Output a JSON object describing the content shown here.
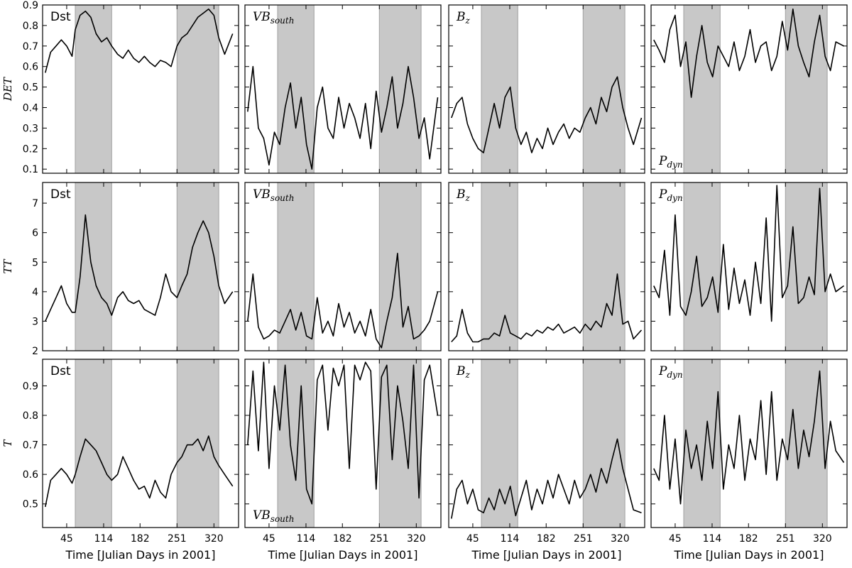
{
  "figure": {
    "xlabel": "Time [Julian Days in 2001]",
    "row_ylabels": [
      "DET",
      "TT",
      "T"
    ],
    "shade_color": "#c8c8c8",
    "line_color": "#000000"
  },
  "chart_data": [
    {
      "type": "line",
      "row": 0,
      "col": 0,
      "label": "Dst",
      "label_math": false,
      "label_pos": "top-left",
      "ylabel": "DET",
      "xlim": [
        0,
        366
      ],
      "ylim": [
        0.08,
        0.9
      ],
      "xticks": [
        45,
        114,
        182,
        251,
        320
      ],
      "yticks": [
        0.1,
        0.2,
        0.3,
        0.4,
        0.5,
        0.6,
        0.7,
        0.8,
        0.9
      ],
      "shaded": [
        [
          61,
          129
        ],
        [
          251,
          329
        ]
      ],
      "x": [
        5,
        15,
        25,
        35,
        45,
        55,
        61,
        70,
        80,
        90,
        100,
        110,
        120,
        129,
        140,
        150,
        160,
        170,
        180,
        190,
        200,
        210,
        220,
        230,
        240,
        251,
        260,
        270,
        280,
        290,
        300,
        310,
        320,
        329,
        340,
        355
      ],
      "y": [
        0.57,
        0.67,
        0.7,
        0.73,
        0.7,
        0.65,
        0.78,
        0.85,
        0.87,
        0.84,
        0.76,
        0.72,
        0.74,
        0.7,
        0.66,
        0.64,
        0.68,
        0.64,
        0.62,
        0.65,
        0.62,
        0.6,
        0.63,
        0.62,
        0.6,
        0.7,
        0.74,
        0.76,
        0.8,
        0.84,
        0.86,
        0.88,
        0.85,
        0.74,
        0.66,
        0.76
      ]
    },
    {
      "type": "line",
      "row": 0,
      "col": 1,
      "label": "VBsouth",
      "label_base": "VB",
      "label_sub": "south",
      "label_math": true,
      "label_pos": "top-left",
      "xlim": [
        0,
        366
      ],
      "ylim": [
        0.08,
        0.9
      ],
      "xticks": [
        45,
        114,
        182,
        251,
        320
      ],
      "yticks": [
        0.1,
        0.2,
        0.3,
        0.4,
        0.5,
        0.6,
        0.7,
        0.8,
        0.9
      ],
      "shaded": [
        [
          61,
          129
        ],
        [
          251,
          329
        ]
      ],
      "x": [
        5,
        15,
        25,
        35,
        45,
        55,
        65,
        75,
        85,
        95,
        105,
        115,
        125,
        135,
        145,
        155,
        165,
        175,
        185,
        195,
        205,
        215,
        225,
        235,
        245,
        255,
        265,
        275,
        285,
        295,
        305,
        315,
        325,
        335,
        345,
        360
      ],
      "y": [
        0.38,
        0.6,
        0.3,
        0.25,
        0.12,
        0.28,
        0.22,
        0.4,
        0.52,
        0.3,
        0.45,
        0.22,
        0.1,
        0.4,
        0.5,
        0.3,
        0.25,
        0.45,
        0.3,
        0.42,
        0.35,
        0.25,
        0.42,
        0.2,
        0.48,
        0.28,
        0.4,
        0.55,
        0.3,
        0.42,
        0.6,
        0.45,
        0.25,
        0.35,
        0.15,
        0.45
      ]
    },
    {
      "type": "line",
      "row": 0,
      "col": 2,
      "label": "Bz",
      "label_base": "B",
      "label_sub": "z",
      "label_math": true,
      "label_pos": "top-left",
      "xlim": [
        0,
        366
      ],
      "ylim": [
        0.08,
        0.9
      ],
      "xticks": [
        45,
        114,
        182,
        251,
        320
      ],
      "yticks": [
        0.1,
        0.2,
        0.3,
        0.4,
        0.5,
        0.6,
        0.7,
        0.8,
        0.9
      ],
      "shaded": [
        [
          61,
          129
        ],
        [
          251,
          329
        ]
      ],
      "x": [
        5,
        15,
        25,
        35,
        45,
        55,
        65,
        75,
        85,
        95,
        105,
        115,
        125,
        135,
        145,
        155,
        165,
        175,
        185,
        195,
        205,
        215,
        225,
        235,
        245,
        255,
        265,
        275,
        285,
        295,
        305,
        315,
        325,
        335,
        345,
        360
      ],
      "y": [
        0.35,
        0.42,
        0.45,
        0.32,
        0.25,
        0.2,
        0.18,
        0.3,
        0.42,
        0.3,
        0.45,
        0.5,
        0.3,
        0.22,
        0.28,
        0.18,
        0.25,
        0.2,
        0.3,
        0.22,
        0.28,
        0.32,
        0.25,
        0.3,
        0.28,
        0.35,
        0.4,
        0.32,
        0.45,
        0.38,
        0.5,
        0.55,
        0.4,
        0.3,
        0.22,
        0.35
      ]
    },
    {
      "type": "line",
      "row": 0,
      "col": 3,
      "label": "Pdyn",
      "label_base": "P",
      "label_sub": "dyn",
      "label_math": true,
      "label_pos": "bottom-left",
      "xlim": [
        0,
        366
      ],
      "ylim": [
        0.08,
        0.9
      ],
      "xticks": [
        45,
        114,
        182,
        251,
        320
      ],
      "yticks": [
        0.1,
        0.2,
        0.3,
        0.4,
        0.5,
        0.6,
        0.7,
        0.8,
        0.9
      ],
      "shaded": [
        [
          61,
          129
        ],
        [
          251,
          329
        ]
      ],
      "x": [
        5,
        15,
        25,
        35,
        45,
        55,
        65,
        75,
        85,
        95,
        105,
        115,
        125,
        135,
        145,
        155,
        165,
        175,
        185,
        195,
        205,
        215,
        225,
        235,
        245,
        255,
        265,
        275,
        285,
        295,
        305,
        315,
        325,
        335,
        345,
        360
      ],
      "y": [
        0.73,
        0.68,
        0.62,
        0.78,
        0.85,
        0.6,
        0.72,
        0.45,
        0.65,
        0.8,
        0.62,
        0.55,
        0.7,
        0.65,
        0.6,
        0.72,
        0.58,
        0.65,
        0.78,
        0.62,
        0.7,
        0.72,
        0.58,
        0.65,
        0.82,
        0.68,
        0.88,
        0.7,
        0.62,
        0.55,
        0.72,
        0.85,
        0.65,
        0.58,
        0.72,
        0.7
      ]
    },
    {
      "type": "line",
      "row": 1,
      "col": 0,
      "label": "Dst",
      "label_math": false,
      "label_pos": "top-left",
      "ylabel": "TT",
      "xlim": [
        0,
        366
      ],
      "ylim": [
        2,
        7.7
      ],
      "xticks": [
        45,
        114,
        182,
        251,
        320
      ],
      "yticks": [
        2,
        3,
        4,
        5,
        6,
        7
      ],
      "shaded": [
        [
          61,
          129
        ],
        [
          251,
          329
        ]
      ],
      "x": [
        5,
        15,
        25,
        35,
        45,
        55,
        61,
        70,
        80,
        90,
        100,
        110,
        120,
        129,
        140,
        150,
        160,
        170,
        180,
        190,
        200,
        210,
        220,
        230,
        240,
        251,
        260,
        270,
        280,
        290,
        300,
        310,
        320,
        329,
        340,
        355
      ],
      "y": [
        3.0,
        3.4,
        3.8,
        4.2,
        3.6,
        3.3,
        3.3,
        4.5,
        6.6,
        5.0,
        4.2,
        3.8,
        3.6,
        3.2,
        3.8,
        4.0,
        3.7,
        3.6,
        3.7,
        3.4,
        3.3,
        3.2,
        3.8,
        4.6,
        4.0,
        3.8,
        4.2,
        4.6,
        5.5,
        6.0,
        6.4,
        6.0,
        5.2,
        4.2,
        3.6,
        4.0
      ]
    },
    {
      "type": "line",
      "row": 1,
      "col": 1,
      "label": "VBsouth",
      "label_base": "VB",
      "label_sub": "south",
      "label_math": true,
      "label_pos": "top-left",
      "xlim": [
        0,
        366
      ],
      "ylim": [
        2,
        7.7
      ],
      "xticks": [
        45,
        114,
        182,
        251,
        320
      ],
      "yticks": [
        2,
        3,
        4,
        5,
        6,
        7
      ],
      "shaded": [
        [
          61,
          129
        ],
        [
          251,
          329
        ]
      ],
      "x": [
        5,
        15,
        25,
        35,
        45,
        55,
        65,
        75,
        85,
        95,
        105,
        115,
        125,
        135,
        145,
        155,
        165,
        175,
        185,
        195,
        205,
        215,
        225,
        235,
        245,
        255,
        265,
        275,
        285,
        295,
        305,
        315,
        325,
        335,
        345,
        360
      ],
      "y": [
        3.0,
        4.6,
        2.8,
        2.4,
        2.5,
        2.7,
        2.6,
        3.0,
        3.4,
        2.7,
        3.3,
        2.5,
        2.4,
        3.8,
        2.6,
        3.0,
        2.5,
        3.6,
        2.8,
        3.3,
        2.6,
        3.0,
        2.5,
        3.4,
        2.4,
        2.1,
        3.0,
        3.8,
        5.3,
        2.8,
        3.5,
        2.4,
        2.5,
        2.7,
        3.0,
        4.0
      ]
    },
    {
      "type": "line",
      "row": 1,
      "col": 2,
      "label": "Bz",
      "label_base": "B",
      "label_sub": "z",
      "label_math": true,
      "label_pos": "top-left",
      "xlim": [
        0,
        366
      ],
      "ylim": [
        2,
        7.7
      ],
      "xticks": [
        45,
        114,
        182,
        251,
        320
      ],
      "yticks": [
        2,
        3,
        4,
        5,
        6,
        7
      ],
      "shaded": [
        [
          61,
          129
        ],
        [
          251,
          329
        ]
      ],
      "x": [
        5,
        15,
        25,
        35,
        45,
        55,
        65,
        75,
        85,
        95,
        105,
        115,
        125,
        135,
        145,
        155,
        165,
        175,
        185,
        195,
        205,
        215,
        225,
        235,
        245,
        255,
        265,
        275,
        285,
        295,
        305,
        315,
        325,
        335,
        345,
        360
      ],
      "y": [
        2.3,
        2.5,
        3.4,
        2.6,
        2.3,
        2.3,
        2.4,
        2.4,
        2.6,
        2.5,
        3.2,
        2.6,
        2.5,
        2.4,
        2.6,
        2.5,
        2.7,
        2.6,
        2.8,
        2.7,
        2.9,
        2.6,
        2.7,
        2.8,
        2.6,
        2.9,
        2.7,
        3.0,
        2.8,
        3.6,
        3.2,
        4.6,
        2.9,
        3.0,
        2.4,
        2.7
      ]
    },
    {
      "type": "line",
      "row": 1,
      "col": 3,
      "label": "Pdyn",
      "label_base": "P",
      "label_sub": "dyn",
      "label_math": true,
      "label_pos": "top-left",
      "xlim": [
        0,
        366
      ],
      "ylim": [
        2,
        7.7
      ],
      "xticks": [
        45,
        114,
        182,
        251,
        320
      ],
      "yticks": [
        2,
        3,
        4,
        5,
        6,
        7
      ],
      "shaded": [
        [
          61,
          129
        ],
        [
          251,
          329
        ]
      ],
      "x": [
        5,
        15,
        25,
        35,
        45,
        55,
        65,
        75,
        85,
        95,
        105,
        115,
        125,
        135,
        145,
        155,
        165,
        175,
        185,
        195,
        205,
        215,
        225,
        235,
        245,
        255,
        265,
        275,
        285,
        295,
        305,
        315,
        325,
        335,
        345,
        360
      ],
      "y": [
        4.2,
        3.8,
        5.4,
        3.2,
        6.6,
        3.5,
        3.2,
        4.0,
        5.2,
        3.5,
        3.8,
        4.5,
        3.3,
        5.6,
        3.4,
        4.8,
        3.6,
        4.4,
        3.2,
        5.0,
        3.6,
        6.5,
        3.0,
        7.6,
        3.8,
        4.2,
        6.2,
        3.6,
        3.8,
        4.5,
        3.9,
        7.5,
        4.0,
        4.6,
        4.0,
        4.2
      ]
    },
    {
      "type": "line",
      "row": 2,
      "col": 0,
      "label": "Dst",
      "label_math": false,
      "label_pos": "top-left",
      "ylabel": "T",
      "xlim": [
        0,
        366
      ],
      "ylim": [
        0.42,
        0.99
      ],
      "xticks": [
        45,
        114,
        182,
        251,
        320
      ],
      "yticks": [
        0.5,
        0.6,
        0.7,
        0.8,
        0.9
      ],
      "shaded": [
        [
          61,
          129
        ],
        [
          251,
          329
        ]
      ],
      "x": [
        5,
        15,
        25,
        35,
        45,
        55,
        61,
        70,
        80,
        90,
        100,
        110,
        120,
        129,
        140,
        150,
        160,
        170,
        180,
        190,
        200,
        210,
        220,
        230,
        240,
        251,
        260,
        270,
        280,
        290,
        300,
        310,
        320,
        329,
        340,
        355
      ],
      "y": [
        0.49,
        0.58,
        0.6,
        0.62,
        0.6,
        0.57,
        0.6,
        0.66,
        0.72,
        0.7,
        0.68,
        0.64,
        0.6,
        0.58,
        0.6,
        0.66,
        0.62,
        0.58,
        0.55,
        0.56,
        0.52,
        0.58,
        0.54,
        0.52,
        0.6,
        0.64,
        0.66,
        0.7,
        0.7,
        0.72,
        0.68,
        0.73,
        0.66,
        0.63,
        0.6,
        0.56
      ]
    },
    {
      "type": "line",
      "row": 2,
      "col": 1,
      "label": "VBsouth",
      "label_base": "VB",
      "label_sub": "south",
      "label_math": true,
      "label_pos": "bottom-left",
      "xlim": [
        0,
        366
      ],
      "ylim": [
        0.42,
        0.99
      ],
      "xticks": [
        45,
        114,
        182,
        251,
        320
      ],
      "yticks": [
        0.5,
        0.6,
        0.7,
        0.8,
        0.9
      ],
      "shaded": [
        [
          61,
          129
        ],
        [
          251,
          329
        ]
      ],
      "x": [
        5,
        15,
        25,
        35,
        45,
        55,
        65,
        75,
        85,
        95,
        105,
        115,
        125,
        135,
        145,
        155,
        165,
        175,
        185,
        195,
        205,
        215,
        225,
        235,
        245,
        255,
        265,
        275,
        285,
        295,
        305,
        315,
        325,
        335,
        345,
        360
      ],
      "y": [
        0.7,
        0.95,
        0.68,
        0.98,
        0.62,
        0.9,
        0.75,
        0.97,
        0.7,
        0.58,
        0.9,
        0.55,
        0.5,
        0.92,
        0.97,
        0.75,
        0.96,
        0.9,
        0.97,
        0.62,
        0.97,
        0.92,
        0.98,
        0.95,
        0.55,
        0.93,
        0.97,
        0.65,
        0.9,
        0.78,
        0.62,
        0.97,
        0.52,
        0.92,
        0.97,
        0.8
      ]
    },
    {
      "type": "line",
      "row": 2,
      "col": 2,
      "label": "Bz",
      "label_base": "B",
      "label_sub": "z",
      "label_math": true,
      "label_pos": "top-left",
      "xlim": [
        0,
        366
      ],
      "ylim": [
        0.42,
        0.99
      ],
      "xticks": [
        45,
        114,
        182,
        251,
        320
      ],
      "yticks": [
        0.5,
        0.6,
        0.7,
        0.8,
        0.9
      ],
      "shaded": [
        [
          61,
          129
        ],
        [
          251,
          329
        ]
      ],
      "x": [
        5,
        15,
        25,
        35,
        45,
        55,
        65,
        75,
        85,
        95,
        105,
        115,
        125,
        135,
        145,
        155,
        165,
        175,
        185,
        195,
        205,
        215,
        225,
        235,
        245,
        255,
        265,
        275,
        285,
        295,
        305,
        315,
        325,
        335,
        345,
        360
      ],
      "y": [
        0.45,
        0.55,
        0.58,
        0.5,
        0.55,
        0.48,
        0.47,
        0.52,
        0.48,
        0.55,
        0.5,
        0.56,
        0.46,
        0.52,
        0.58,
        0.48,
        0.55,
        0.5,
        0.58,
        0.52,
        0.6,
        0.55,
        0.5,
        0.58,
        0.52,
        0.55,
        0.6,
        0.54,
        0.62,
        0.57,
        0.65,
        0.72,
        0.62,
        0.55,
        0.48,
        0.47
      ]
    },
    {
      "type": "line",
      "row": 2,
      "col": 3,
      "label": "Pdyn",
      "label_base": "P",
      "label_sub": "dyn",
      "label_math": true,
      "label_pos": "top-left",
      "xlim": [
        0,
        366
      ],
      "ylim": [
        0.42,
        0.99
      ],
      "xticks": [
        45,
        114,
        182,
        251,
        320
      ],
      "yticks": [
        0.5,
        0.6,
        0.7,
        0.8,
        0.9
      ],
      "shaded": [
        [
          61,
          129
        ],
        [
          251,
          329
        ]
      ],
      "x": [
        5,
        15,
        25,
        35,
        45,
        55,
        65,
        75,
        85,
        95,
        105,
        115,
        125,
        135,
        145,
        155,
        165,
        175,
        185,
        195,
        205,
        215,
        225,
        235,
        245,
        255,
        265,
        275,
        285,
        295,
        305,
        315,
        325,
        335,
        345,
        360
      ],
      "y": [
        0.62,
        0.58,
        0.8,
        0.55,
        0.72,
        0.5,
        0.75,
        0.62,
        0.7,
        0.58,
        0.78,
        0.62,
        0.88,
        0.55,
        0.7,
        0.62,
        0.8,
        0.58,
        0.72,
        0.65,
        0.85,
        0.6,
        0.88,
        0.58,
        0.72,
        0.65,
        0.82,
        0.62,
        0.75,
        0.66,
        0.78,
        0.95,
        0.62,
        0.78,
        0.68,
        0.64
      ]
    }
  ]
}
